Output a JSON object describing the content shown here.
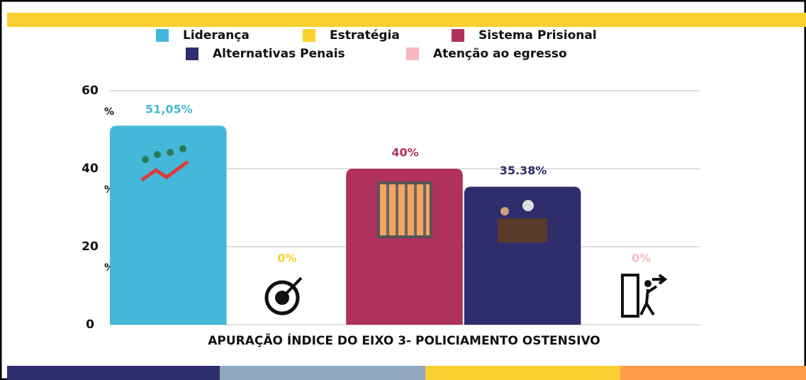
{
  "chart_data": {
    "type": "bar",
    "categories": [
      "Liderança",
      "Estratégia",
      "Sistema Prisional",
      "Alternativas Penais",
      "Atenção ao egresso"
    ],
    "values": [
      51.05,
      0,
      40,
      35.38,
      0
    ],
    "value_labels": [
      "51,05%",
      "0%",
      "40%",
      "35.38%",
      "0%"
    ],
    "colors": [
      "#44b8d8",
      "#f9d030",
      "#b0305e",
      "#2f2d6b",
      "#f7b8c0"
    ],
    "xlabel": "APURAÇÃO ÍNDICE DO EIXO 3- POLICIAMENTO OSTENSIVO",
    "ylim": [
      0,
      60
    ],
    "yticks": [
      {
        "value": 0,
        "label": "0"
      },
      {
        "value": 20,
        "label": "20\n%"
      },
      {
        "value": 40,
        "label": "40\n%"
      },
      {
        "value": 60,
        "label": "60\n%"
      }
    ],
    "grid": true
  }
}
